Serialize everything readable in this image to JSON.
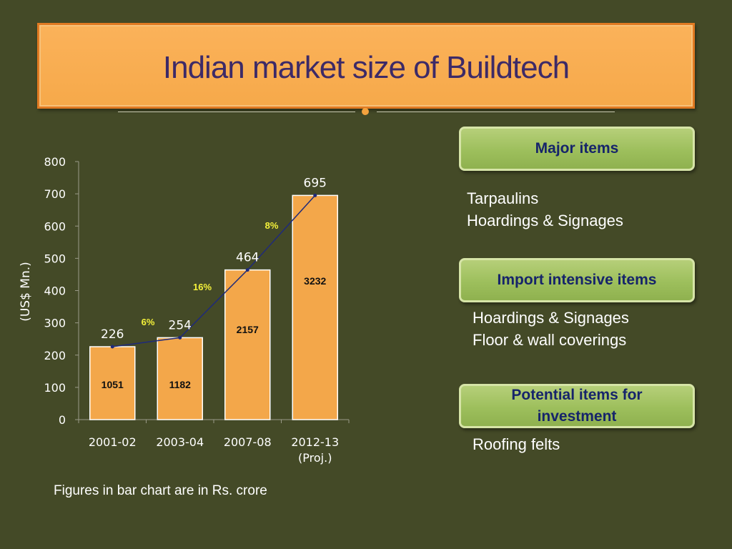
{
  "title": "Indian market size of Buildtech",
  "chart_data": {
    "type": "bar",
    "categories": [
      "2001-02",
      "2003-04",
      "2007-08",
      "2012-13 (Proj.)"
    ],
    "category_lines": [
      [
        "2001-02"
      ],
      [
        "2003-04"
      ],
      [
        "2007-08"
      ],
      [
        "2012-13",
        "(Proj.)"
      ]
    ],
    "series": [
      {
        "values": [
          226,
          254,
          464,
          695
        ]
      },
      {
        "values": [
          1051,
          1182,
          2157,
          3232
        ]
      }
    ],
    "growth_labels": [
      "6%",
      "16%",
      "8%"
    ],
    "ylabel": "(US$ Mn.)",
    "ylim": [
      0,
      800
    ],
    "yticks": [
      0,
      100,
      200,
      300,
      400,
      500,
      600,
      700,
      800
    ],
    "bar_color": "#f3a74a",
    "line_color": "#1f2a7a",
    "growth_label_color": "#f5f23a"
  },
  "note": "Figures in bar chart  are in Rs. crore",
  "panels": [
    {
      "heading": "Major items",
      "items": [
        "Tarpaulins",
        "Hoardings & Signages"
      ]
    },
    {
      "heading": "Import intensive items",
      "items": [
        "Hoardings & Signages",
        "Floor & wall coverings"
      ]
    },
    {
      "heading": "Potential items for investment",
      "items": [
        "Roofing felts"
      ]
    }
  ]
}
